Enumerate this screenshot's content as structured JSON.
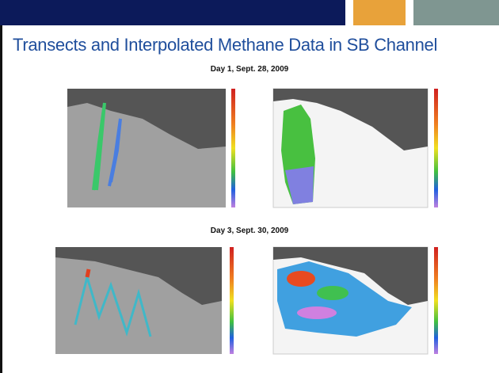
{
  "header": {
    "title": "Transects and Interpolated Methane Data in SB Channel"
  },
  "sections": [
    {
      "label": "Day 1, Sept. 28, 2009"
    },
    {
      "label": "Day 3, Sept. 30, 2009"
    }
  ]
}
